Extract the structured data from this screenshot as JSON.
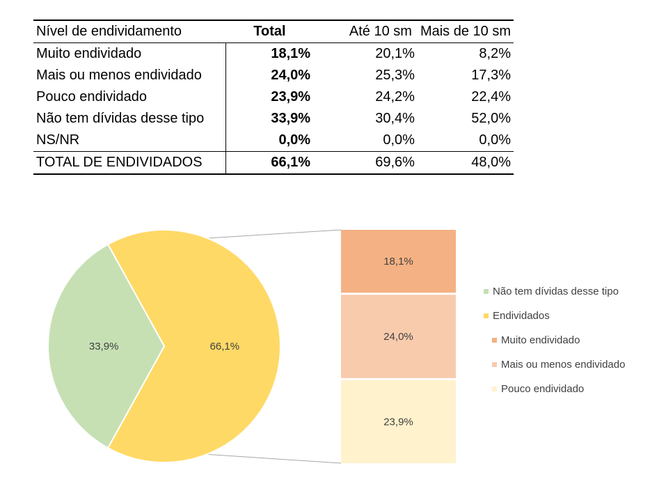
{
  "table": {
    "headers": {
      "label": "Nível de endividamento",
      "total": "Total",
      "ate10": "Até 10 sm",
      "mais10": "Mais de 10 sm"
    },
    "rows": [
      {
        "label": "Muito endividado",
        "total": "18,1%",
        "ate10": "20,1%",
        "mais10": "8,2%"
      },
      {
        "label": "Mais ou menos endividado",
        "total": "24,0%",
        "ate10": "25,3%",
        "mais10": "17,3%"
      },
      {
        "label": "Pouco endividado",
        "total": "23,9%",
        "ate10": "24,2%",
        "mais10": "22,4%"
      },
      {
        "label": "Não tem dívidas desse tipo",
        "total": "33,9%",
        "ate10": "30,4%",
        "mais10": "52,0%"
      },
      {
        "label": "NS/NR",
        "total": "0,0%",
        "ate10": "0,0%",
        "mais10": "0,0%"
      },
      {
        "label": "TOTAL DE ENDIVIDADOS",
        "total": "66,1%",
        "ate10": "69,6%",
        "mais10": "48,0%"
      }
    ]
  },
  "chart_data": {
    "type": "pie",
    "title": "",
    "pie": {
      "slices": [
        {
          "name": "Não tem dívidas desse tipo",
          "value": 33.9,
          "label": "33,9%",
          "color": "#c6e0b4"
        },
        {
          "name": "Endividados",
          "value": 66.1,
          "label": "66,1%",
          "color": "#ffd966"
        }
      ]
    },
    "breakdown": {
      "of": "Endividados",
      "segments": [
        {
          "name": "Muito endividado",
          "value": 18.1,
          "label": "18,1%",
          "color": "#f4b183"
        },
        {
          "name": "Mais ou menos endividado",
          "value": 24.0,
          "label": "24,0%",
          "color": "#f8cbad"
        },
        {
          "name": "Pouco endividado",
          "value": 23.9,
          "label": "23,9%",
          "color": "#fff2cc"
        }
      ]
    },
    "legend": {
      "placement": "right",
      "entries": [
        {
          "name": "Não tem dívidas desse tipo",
          "color": "#c6e0b4",
          "indent": false
        },
        {
          "name": "Endividados",
          "color": "#ffd966",
          "indent": false
        },
        {
          "name": "Muito endividado",
          "color": "#f4b183",
          "indent": true
        },
        {
          "name": "Mais ou menos endividado",
          "color": "#f8cbad",
          "indent": true
        },
        {
          "name": "Pouco endividado",
          "color": "#fff2cc",
          "indent": true
        }
      ]
    }
  }
}
